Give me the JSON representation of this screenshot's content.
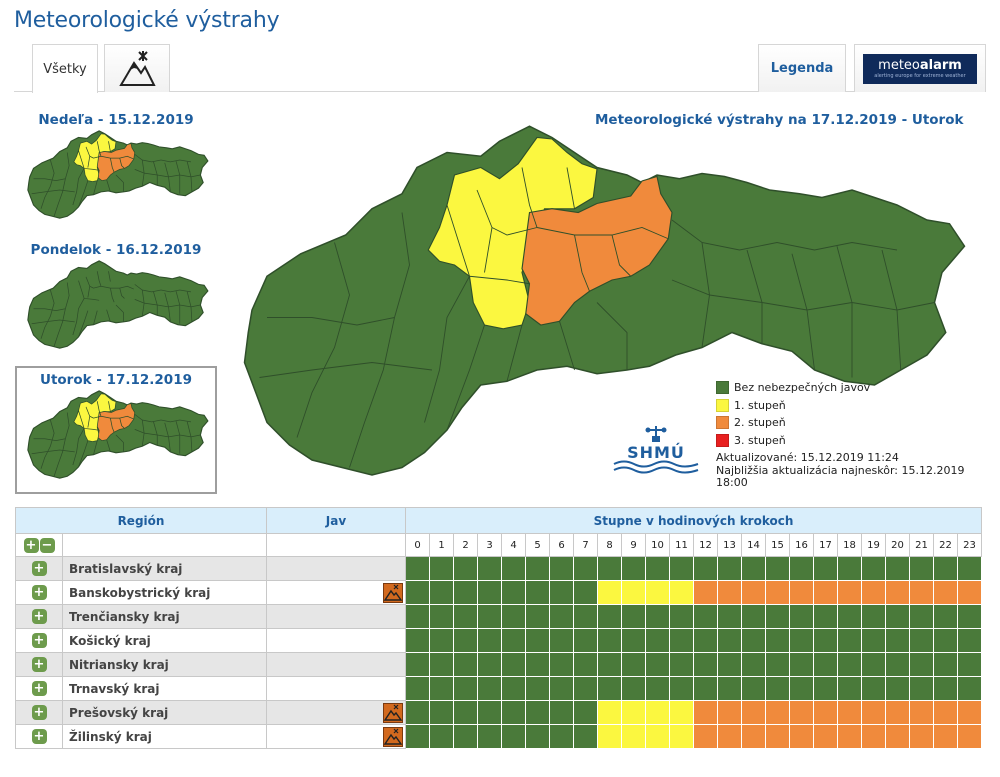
{
  "page": {
    "title": "Meteorologické výstrahy"
  },
  "tabs": {
    "all_label": "Všetky",
    "icon_tab_name": "mountain-phenomenon-icon",
    "legend_label": "Legenda",
    "meteoalarm_word_light": "meteo",
    "meteoalarm_word_bold": "alarm",
    "meteoalarm_tagline": "alerting europe for extreme weather"
  },
  "days": [
    {
      "title": "Nedeľa - 15.12.2019",
      "selected": false,
      "show_alerts": true
    },
    {
      "title": "Pondelok - 16.12.2019",
      "selected": false,
      "show_alerts": false
    },
    {
      "title": "Utorok - 17.12.2019",
      "selected": true,
      "show_alerts": true
    }
  ],
  "main": {
    "title": "Meteorologické výstrahy na 17.12.2019 - Utorok"
  },
  "legend": [
    {
      "label": "Bez nebezpečných javov",
      "color": "#4a7a3a"
    },
    {
      "label": "1. stupeň",
      "color": "#fbf740"
    },
    {
      "label": "2. stupeň",
      "color": "#f08a3c"
    },
    {
      "label": "3. stupeň",
      "color": "#e82020"
    }
  ],
  "shmu": {
    "logo_text": "SHMÚ"
  },
  "update": {
    "updated": "Aktualizované: 15.12.2019 11:24",
    "next": "Najbližšia aktualizácia najneskôr: 15.12.2019 18:00"
  },
  "table": {
    "header_region": "Región",
    "header_jav": "Jav",
    "header_hours": "Stupne v hodinových krokoch",
    "hours": [
      "0",
      "1",
      "2",
      "3",
      "4",
      "5",
      "6",
      "7",
      "8",
      "9",
      "10",
      "11",
      "12",
      "13",
      "14",
      "15",
      "16",
      "17",
      "18",
      "19",
      "20",
      "21",
      "22",
      "23"
    ],
    "rows": [
      {
        "name": "Bratislavský kraj",
        "jav_icon": false,
        "levels": [
          0,
          0,
          0,
          0,
          0,
          0,
          0,
          0,
          0,
          0,
          0,
          0,
          0,
          0,
          0,
          0,
          0,
          0,
          0,
          0,
          0,
          0,
          0,
          0
        ]
      },
      {
        "name": "Banskobystrický kraj",
        "jav_icon": true,
        "levels": [
          0,
          0,
          0,
          0,
          0,
          0,
          0,
          0,
          1,
          1,
          1,
          1,
          2,
          2,
          2,
          2,
          2,
          2,
          2,
          2,
          2,
          2,
          2,
          2
        ]
      },
      {
        "name": "Trenčiansky kraj",
        "jav_icon": false,
        "levels": [
          0,
          0,
          0,
          0,
          0,
          0,
          0,
          0,
          0,
          0,
          0,
          0,
          0,
          0,
          0,
          0,
          0,
          0,
          0,
          0,
          0,
          0,
          0,
          0
        ]
      },
      {
        "name": "Košický kraj",
        "jav_icon": false,
        "levels": [
          0,
          0,
          0,
          0,
          0,
          0,
          0,
          0,
          0,
          0,
          0,
          0,
          0,
          0,
          0,
          0,
          0,
          0,
          0,
          0,
          0,
          0,
          0,
          0
        ]
      },
      {
        "name": "Nitriansky kraj",
        "jav_icon": false,
        "levels": [
          0,
          0,
          0,
          0,
          0,
          0,
          0,
          0,
          0,
          0,
          0,
          0,
          0,
          0,
          0,
          0,
          0,
          0,
          0,
          0,
          0,
          0,
          0,
          0
        ]
      },
      {
        "name": "Trnavský kraj",
        "jav_icon": false,
        "levels": [
          0,
          0,
          0,
          0,
          0,
          0,
          0,
          0,
          0,
          0,
          0,
          0,
          0,
          0,
          0,
          0,
          0,
          0,
          0,
          0,
          0,
          0,
          0,
          0
        ]
      },
      {
        "name": "Prešovský kraj",
        "jav_icon": true,
        "levels": [
          0,
          0,
          0,
          0,
          0,
          0,
          0,
          0,
          1,
          1,
          1,
          1,
          2,
          2,
          2,
          2,
          2,
          2,
          2,
          2,
          2,
          2,
          2,
          2
        ]
      },
      {
        "name": "Žilinský kraj",
        "jav_icon": true,
        "levels": [
          0,
          0,
          0,
          0,
          0,
          0,
          0,
          0,
          1,
          1,
          1,
          1,
          2,
          2,
          2,
          2,
          2,
          2,
          2,
          2,
          2,
          2,
          2,
          2
        ]
      }
    ]
  },
  "colors": {
    "none": "#4a7a3a",
    "level1": "#fbf740",
    "level2": "#f08a3c",
    "level3": "#e82020",
    "border": "#2f4f2a"
  }
}
